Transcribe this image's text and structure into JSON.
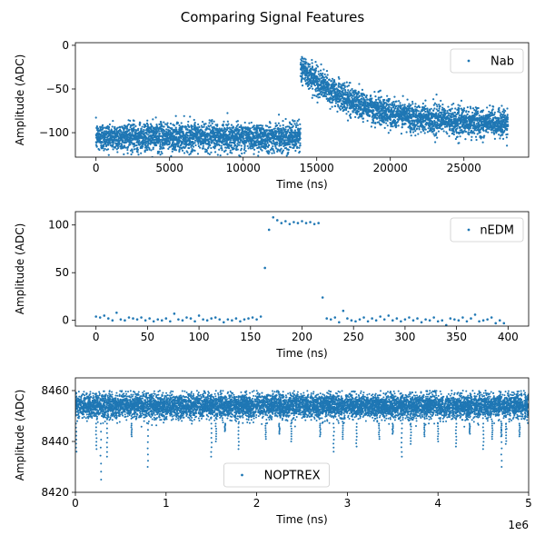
{
  "figure": {
    "title": "Comparing Signal Features"
  },
  "chart_data": [
    {
      "type": "scatter",
      "xlabel": "Time (ns)",
      "ylabel": "Amplitude (ADC)",
      "xlim": [
        -1400,
        29400
      ],
      "ylim": [
        -128,
        3
      ],
      "xticks": [
        0,
        5000,
        10000,
        15000,
        20000,
        25000
      ],
      "xtick_labels": [
        "0",
        "5000",
        "10000",
        "15000",
        "20000",
        "25000"
      ],
      "yticks": [
        0,
        -50,
        -100
      ],
      "ytick_labels": [
        "0",
        "−50",
        "−100"
      ],
      "grid": false,
      "legend_position": "upper-right",
      "series": [
        {
          "name": "Nab",
          "color": "#1f77b4",
          "marker": "dot",
          "description_shape": {
            "baseline_mean": -105,
            "baseline_noise": 10,
            "baseline_x_range": [
              0,
              13900
            ],
            "rise_at_x": 13900,
            "peak_value": -25,
            "decay_to": -92,
            "decay_time_constant": 4000,
            "tail_noise": 8,
            "x_end": 28000,
            "n_points": 5600
          }
        }
      ]
    },
    {
      "type": "scatter",
      "xlabel": "Time (ns)",
      "ylabel": "Amplitude (ADC)",
      "xlim": [
        -20,
        420
      ],
      "ylim": [
        -6,
        114
      ],
      "xticks": [
        0,
        50,
        100,
        150,
        200,
        250,
        300,
        350,
        400
      ],
      "xtick_labels": [
        "0",
        "50",
        "100",
        "150",
        "200",
        "250",
        "300",
        "350",
        "400"
      ],
      "yticks": [
        0,
        50,
        100
      ],
      "ytick_labels": [
        "0",
        "50",
        "100"
      ],
      "grid": false,
      "legend_position": "upper-right",
      "series": [
        {
          "name": "nEDM",
          "color": "#1f77b4",
          "marker": "dot",
          "x": [
            0,
            4,
            8,
            12,
            16,
            20,
            24,
            28,
            32,
            36,
            40,
            44,
            48,
            52,
            56,
            60,
            64,
            68,
            72,
            76,
            80,
            84,
            88,
            92,
            96,
            100,
            104,
            108,
            112,
            116,
            120,
            124,
            128,
            132,
            136,
            140,
            144,
            148,
            152,
            156,
            160,
            164,
            168,
            172,
            176,
            180,
            184,
            188,
            192,
            196,
            200,
            204,
            208,
            212,
            216,
            220,
            224,
            228,
            232,
            236,
            240,
            244,
            248,
            252,
            256,
            260,
            264,
            268,
            272,
            276,
            280,
            284,
            288,
            292,
            296,
            300,
            304,
            308,
            312,
            316,
            320,
            324,
            328,
            332,
            336,
            340,
            344,
            348,
            352,
            356,
            360,
            364,
            368,
            372,
            376,
            380,
            384,
            388,
            392,
            396
          ],
          "y": [
            4,
            3,
            5,
            2,
            0,
            8,
            1,
            0,
            3,
            2,
            1,
            3,
            0,
            2,
            -1,
            1,
            0,
            2,
            -1,
            7,
            1,
            0,
            3,
            2,
            -1,
            5,
            1,
            0,
            2,
            3,
            1,
            -2,
            1,
            0,
            2,
            -1,
            1,
            2,
            3,
            1,
            4,
            55,
            95,
            108,
            105,
            102,
            104,
            101,
            103,
            102,
            104,
            102,
            103,
            101,
            102,
            24,
            2,
            1,
            3,
            -2,
            10,
            2,
            0,
            -1,
            1,
            3,
            -1,
            2,
            0,
            4,
            1,
            5,
            0,
            2,
            -1,
            1,
            3,
            0,
            2,
            -2,
            1,
            0,
            3,
            -1,
            0,
            -5,
            2,
            1,
            0,
            3,
            -1,
            2,
            6,
            -1,
            0,
            1,
            3,
            -3,
            0,
            -3
          ]
        }
      ]
    },
    {
      "type": "scatter",
      "xlabel": "Time (ns)",
      "ylabel": "Amplitude (ADC)",
      "xlim": [
        0,
        5000000
      ],
      "ylim": [
        8420,
        8465
      ],
      "xticks": [
        0,
        1000000,
        2000000,
        3000000,
        4000000,
        5000000
      ],
      "xtick_labels": [
        "0",
        "1",
        "2",
        "3",
        "4",
        "5"
      ],
      "x_offset_label": "1e6",
      "yticks": [
        8420,
        8440,
        8460
      ],
      "ytick_labels": [
        "8420",
        "8440",
        "8460"
      ],
      "grid": false,
      "legend_position": "lower-center",
      "series": [
        {
          "name": "NOPTREX",
          "color": "#1f77b4",
          "marker": "dot",
          "description_shape": {
            "band_top": 8460,
            "band_mean": 8454,
            "band_bottom": 8447,
            "spike_mins": [
              8436,
              8437,
              8425,
              8434,
              8442,
              8430,
              8434,
              8440,
              8444,
              8437,
              8441,
              8443,
              8440,
              8442,
              8436,
              8441,
              8438,
              8441,
              8443,
              8434,
              8439,
              8442,
              8440,
              8438,
              8443,
              8437,
              8441,
              8442,
              8439,
              8430,
              8442
            ],
            "spike_x": [
              10000,
              230000,
              280000,
              350000,
              620000,
              800000,
              1500000,
              1550000,
              1650000,
              1800000,
              2100000,
              2250000,
              2380000,
              2700000,
              2850000,
              2950000,
              3100000,
              3350000,
              3500000,
              3600000,
              3700000,
              3850000,
              4000000,
              4200000,
              4350000,
              4500000,
              4600000,
              4700000,
              4750000,
              4700000,
              4900000
            ],
            "n_points": 9000
          }
        }
      ]
    }
  ]
}
